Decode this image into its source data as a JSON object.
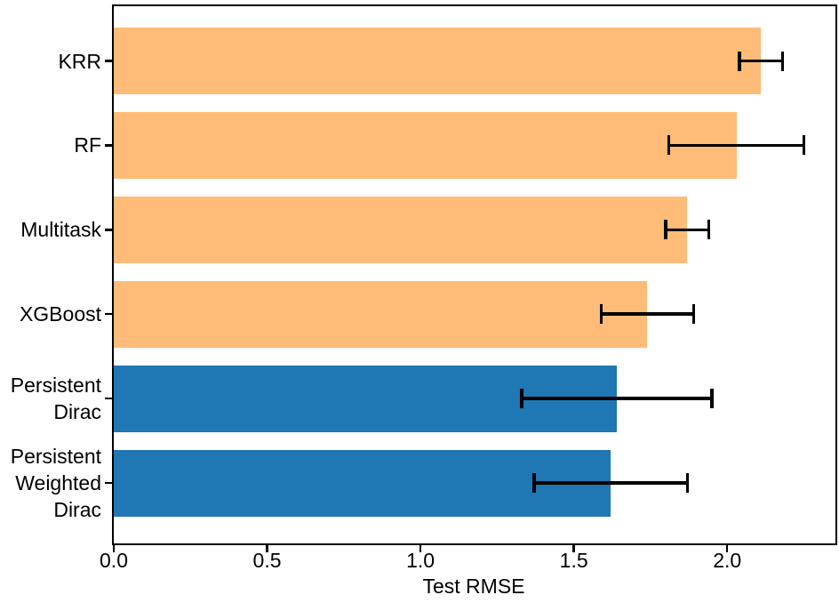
{
  "chart_data": {
    "type": "bar",
    "orientation": "horizontal",
    "title": "",
    "xlabel": "Test RMSE",
    "ylabel": "",
    "xlim": [
      0,
      2.35
    ],
    "xticks": [
      0.0,
      0.5,
      1.0,
      1.5,
      2.0
    ],
    "xtick_labels": [
      "0.0",
      "0.5",
      "1.0",
      "1.5",
      "2.0"
    ],
    "grid": false,
    "legend_position": "none",
    "categories": [
      "KRR",
      "RF",
      "Multitask",
      "XGBoost",
      "Persistent\nDirac",
      "Persistent\nWeighted\nDirac"
    ],
    "series": [
      {
        "name": "Test RMSE",
        "values": [
          2.11,
          2.03,
          1.87,
          1.74,
          1.64,
          1.62
        ],
        "errors": [
          0.07,
          0.22,
          0.07,
          0.15,
          0.31,
          0.25
        ],
        "bar_colors": [
          "#FFBB78",
          "#FFBB78",
          "#FFBB78",
          "#FFBB78",
          "#1F77B4",
          "#1F77B4"
        ]
      }
    ],
    "colors": {
      "orange_bars": "#FFBB78",
      "blue_bars": "#1F77B4",
      "error_bars": "#000000",
      "axis": "#000000",
      "background": "#FFFFFF"
    }
  }
}
